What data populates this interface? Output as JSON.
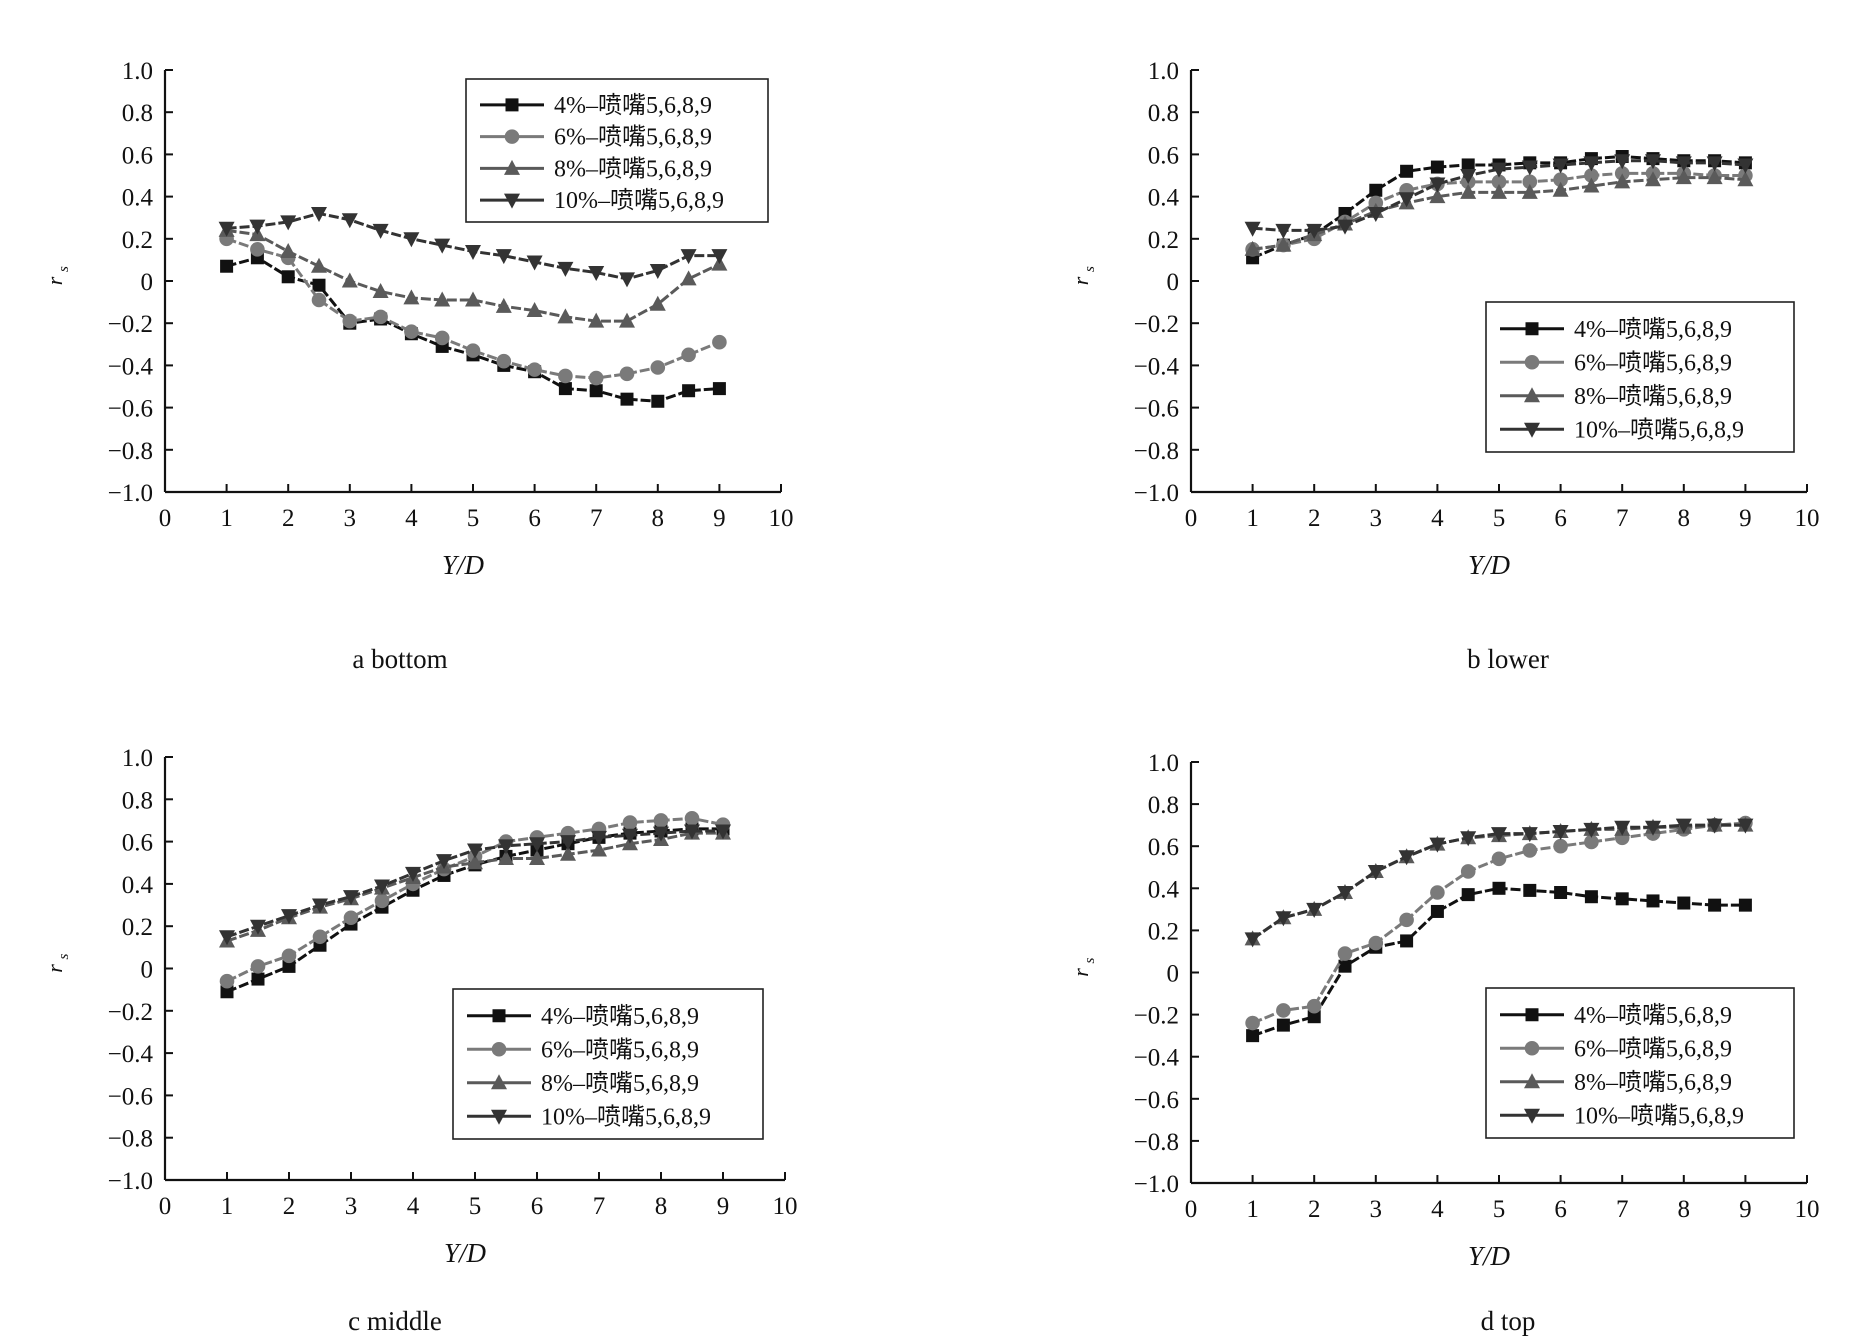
{
  "chart_data": [
    {
      "type": "line",
      "caption": "a bottom",
      "xlabel": "Y/D",
      "ylabel": "r",
      "ylabel_sub": "s",
      "xlim": [
        0,
        10
      ],
      "ylim": [
        -1.0,
        1.0
      ],
      "x_ticks": [
        "0",
        "1",
        "2",
        "3",
        "4",
        "5",
        "6",
        "7",
        "8",
        "9",
        "10"
      ],
      "y_ticks": [
        "−1.0",
        "−0.8",
        "−0.6",
        "−0.4",
        "−0.2",
        "0",
        "0.2",
        "0.4",
        "0.6",
        "0.8",
        "1.0"
      ],
      "legend": "top-right",
      "x": [
        1,
        1.5,
        2,
        2.5,
        3,
        3.5,
        4,
        4.5,
        5,
        5.5,
        6,
        6.5,
        7,
        7.5,
        8,
        8.5,
        9
      ],
      "series": [
        {
          "name": "4%–喷嘴5,6,8,9",
          "marker": "square",
          "color": "#111111",
          "values": [
            0.07,
            0.11,
            0.02,
            -0.02,
            -0.2,
            -0.18,
            -0.25,
            -0.31,
            -0.35,
            -0.4,
            -0.43,
            -0.51,
            -0.52,
            -0.56,
            -0.57,
            -0.52,
            -0.51
          ]
        },
        {
          "name": "6%–喷嘴5,6,8,9",
          "marker": "circle",
          "color": "#7a7a7a",
          "values": [
            0.2,
            0.15,
            0.11,
            -0.09,
            -0.19,
            -0.17,
            -0.24,
            -0.27,
            -0.33,
            -0.38,
            -0.42,
            -0.45,
            -0.46,
            -0.44,
            -0.41,
            -0.35,
            -0.29
          ]
        },
        {
          "name": "8%–喷嘴5,6,8,9",
          "marker": "triangle-up",
          "color": "#5a5a5a",
          "values": [
            0.24,
            0.22,
            0.14,
            0.07,
            0.0,
            -0.05,
            -0.08,
            -0.09,
            -0.09,
            -0.12,
            -0.14,
            -0.17,
            -0.19,
            -0.19,
            -0.11,
            0.01,
            0.08
          ]
        },
        {
          "name": "10%–喷嘴5,6,8,9",
          "marker": "triangle-down",
          "color": "#333333",
          "values": [
            0.25,
            0.26,
            0.28,
            0.32,
            0.29,
            0.24,
            0.2,
            0.17,
            0.14,
            0.12,
            0.09,
            0.06,
            0.04,
            0.01,
            0.05,
            0.12,
            0.12
          ]
        }
      ]
    },
    {
      "type": "line",
      "caption": "b lower",
      "xlabel": "Y/D",
      "ylabel": "r",
      "ylabel_sub": "s",
      "xlim": [
        0,
        10
      ],
      "ylim": [
        -1.0,
        1.0
      ],
      "x_ticks": [
        "0",
        "1",
        "2",
        "3",
        "4",
        "5",
        "6",
        "7",
        "8",
        "9",
        "10"
      ],
      "y_ticks": [
        "−1.0",
        "−0.8",
        "−0.6",
        "−0.4",
        "−0.2",
        "0",
        "0.2",
        "0.4",
        "0.6",
        "0.8",
        "1.0"
      ],
      "legend": "bottom-right",
      "x": [
        1,
        1.5,
        2,
        2.5,
        3,
        3.5,
        4,
        4.5,
        5,
        5.5,
        6,
        6.5,
        7,
        7.5,
        8,
        8.5,
        9
      ],
      "series": [
        {
          "name": "4%–喷嘴5,6,8,9",
          "marker": "square",
          "color": "#111111",
          "values": [
            0.11,
            0.17,
            0.22,
            0.32,
            0.43,
            0.52,
            0.54,
            0.55,
            0.55,
            0.56,
            0.56,
            0.58,
            0.59,
            0.58,
            0.57,
            0.57,
            0.56
          ]
        },
        {
          "name": "6%–喷嘴5,6,8,9",
          "marker": "circle",
          "color": "#7a7a7a",
          "values": [
            0.15,
            0.17,
            0.2,
            0.28,
            0.37,
            0.43,
            0.46,
            0.47,
            0.47,
            0.47,
            0.48,
            0.5,
            0.51,
            0.51,
            0.51,
            0.5,
            0.5
          ]
        },
        {
          "name": "8%–喷嘴5,6,8,9",
          "marker": "triangle-up",
          "color": "#5a5a5a",
          "values": [
            0.15,
            0.17,
            0.22,
            0.27,
            0.33,
            0.37,
            0.4,
            0.42,
            0.42,
            0.42,
            0.43,
            0.45,
            0.47,
            0.48,
            0.49,
            0.49,
            0.48
          ]
        },
        {
          "name": "10%–喷嘴5,6,8,9",
          "marker": "triangle-down",
          "color": "#333333",
          "values": [
            0.25,
            0.24,
            0.24,
            0.26,
            0.32,
            0.39,
            0.46,
            0.5,
            0.53,
            0.54,
            0.55,
            0.56,
            0.57,
            0.57,
            0.56,
            0.56,
            0.55
          ]
        }
      ]
    },
    {
      "type": "line",
      "caption": "c middle",
      "xlabel": "Y/D",
      "ylabel": "r",
      "ylabel_sub": "s",
      "xlim": [
        0,
        10
      ],
      "ylim": [
        -1.0,
        1.0
      ],
      "x_ticks": [
        "0",
        "1",
        "2",
        "3",
        "4",
        "5",
        "6",
        "7",
        "8",
        "9",
        "10"
      ],
      "y_ticks": [
        "−1.0",
        "−0.8",
        "−0.6",
        "−0.4",
        "−0.2",
        "0",
        "0.2",
        "0.4",
        "0.6",
        "0.8",
        "1.0"
      ],
      "legend": "bottom-right",
      "x": [
        1,
        1.5,
        2,
        2.5,
        3,
        3.5,
        4,
        4.5,
        5,
        5.5,
        6,
        6.5,
        7,
        7.5,
        8,
        8.5,
        9
      ],
      "series": [
        {
          "name": "4%–喷嘴5,6,8,9",
          "marker": "square",
          "color": "#111111",
          "values": [
            -0.11,
            -0.05,
            0.01,
            0.11,
            0.21,
            0.29,
            0.37,
            0.44,
            0.49,
            0.53,
            0.56,
            0.59,
            0.62,
            0.64,
            0.65,
            0.66,
            0.66
          ]
        },
        {
          "name": "6%–喷嘴5,6,8,9",
          "marker": "circle",
          "color": "#7a7a7a",
          "values": [
            -0.06,
            0.01,
            0.06,
            0.15,
            0.24,
            0.32,
            0.4,
            0.47,
            0.53,
            0.6,
            0.62,
            0.64,
            0.66,
            0.69,
            0.7,
            0.71,
            0.68
          ]
        },
        {
          "name": "8%–喷嘴5,6,8,9",
          "marker": "triangle-up",
          "color": "#5a5a5a",
          "values": [
            0.13,
            0.18,
            0.24,
            0.29,
            0.33,
            0.38,
            0.43,
            0.48,
            0.5,
            0.52,
            0.52,
            0.54,
            0.56,
            0.59,
            0.61,
            0.64,
            0.64
          ]
        },
        {
          "name": "10%–喷嘴5,6,8,9",
          "marker": "triangle-down",
          "color": "#333333",
          "values": [
            0.15,
            0.2,
            0.25,
            0.3,
            0.34,
            0.39,
            0.45,
            0.51,
            0.56,
            0.58,
            0.59,
            0.6,
            0.62,
            0.63,
            0.64,
            0.65,
            0.65
          ]
        }
      ]
    },
    {
      "type": "line",
      "caption": "d top",
      "xlabel": "Y/D",
      "ylabel": "r",
      "ylabel_sub": "s",
      "xlim": [
        0,
        10
      ],
      "ylim": [
        -1.0,
        1.0
      ],
      "x_ticks": [
        "0",
        "1",
        "2",
        "3",
        "4",
        "5",
        "6",
        "7",
        "8",
        "9",
        "10"
      ],
      "y_ticks": [
        "−1.0",
        "−0.8",
        "−0.6",
        "−0.4",
        "−0.2",
        "0",
        "0.2",
        "0.4",
        "0.6",
        "0.8",
        "1.0"
      ],
      "legend": "bottom-right",
      "x": [
        1,
        1.5,
        2,
        2.5,
        3,
        3.5,
        4,
        4.5,
        5,
        5.5,
        6,
        6.5,
        7,
        7.5,
        8,
        8.5,
        9
      ],
      "series": [
        {
          "name": "4%–喷嘴5,6,8,9",
          "marker": "square",
          "color": "#111111",
          "values": [
            -0.3,
            -0.25,
            -0.21,
            0.03,
            0.12,
            0.15,
            0.29,
            0.37,
            0.4,
            0.39,
            0.38,
            0.36,
            0.35,
            0.34,
            0.33,
            0.32,
            0.32
          ]
        },
        {
          "name": "6%–喷嘴5,6,8,9",
          "marker": "circle",
          "color": "#7a7a7a",
          "values": [
            -0.24,
            -0.18,
            -0.16,
            0.09,
            0.14,
            0.25,
            0.38,
            0.48,
            0.54,
            0.58,
            0.6,
            0.62,
            0.64,
            0.66,
            0.68,
            0.7,
            0.71
          ]
        },
        {
          "name": "8%–喷嘴5,6,8,9",
          "marker": "triangle-up",
          "color": "#5a5a5a",
          "values": [
            0.16,
            0.26,
            0.3,
            0.38,
            0.48,
            0.55,
            0.61,
            0.64,
            0.65,
            0.66,
            0.67,
            0.68,
            0.68,
            0.69,
            0.69,
            0.7,
            0.7
          ]
        },
        {
          "name": "10%–喷嘴5,6,8,9",
          "marker": "triangle-down",
          "color": "#333333",
          "values": [
            0.16,
            0.26,
            0.3,
            0.38,
            0.48,
            0.55,
            0.61,
            0.64,
            0.66,
            0.66,
            0.67,
            0.68,
            0.69,
            0.69,
            0.7,
            0.7,
            0.7
          ]
        }
      ]
    }
  ]
}
